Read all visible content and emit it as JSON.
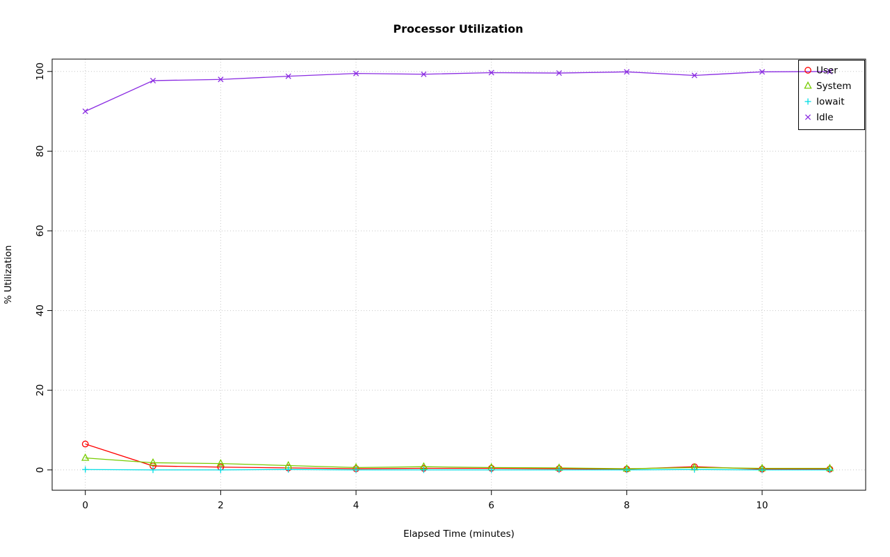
{
  "chart_data": {
    "type": "line",
    "title": "Processor Utilization",
    "xlabel": "Elapsed Time (minutes)",
    "ylabel": "% Utilization",
    "x": [
      0,
      1,
      2,
      3,
      4,
      5,
      6,
      7,
      8,
      9,
      10,
      11
    ],
    "series": [
      {
        "name": "User",
        "color": "#ff0000",
        "marker": "circle",
        "values": [
          6.5,
          1.0,
          0.7,
          0.5,
          0.3,
          0.4,
          0.4,
          0.3,
          0.2,
          0.8,
          0.2,
          0.2
        ]
      },
      {
        "name": "System",
        "color": "#77cc00",
        "marker": "triangle",
        "values": [
          3.0,
          1.8,
          1.6,
          1.1,
          0.6,
          0.8,
          0.6,
          0.5,
          0.3,
          0.6,
          0.4,
          0.4
        ]
      },
      {
        "name": "Iowait",
        "color": "#00dde4",
        "marker": "plus",
        "values": [
          0.1,
          0.0,
          0.0,
          0.1,
          0.0,
          0.0,
          0.0,
          0.0,
          0.0,
          0.1,
          0.0,
          0.0
        ]
      },
      {
        "name": "Idle",
        "color": "#8a2be2",
        "marker": "x",
        "values": [
          90.0,
          97.7,
          98.0,
          98.8,
          99.5,
          99.3,
          99.7,
          99.6,
          99.9,
          99.0,
          99.9,
          100.0
        ]
      }
    ],
    "xticks": [
      0,
      2,
      4,
      6,
      8,
      10
    ],
    "yticks": [
      0,
      20,
      40,
      60,
      80,
      100
    ],
    "xlim": [
      -0.49,
      11.53
    ],
    "ylim": [
      -5.1,
      103.1
    ],
    "grid": "dotted",
    "grid_color": "#c6c6c6",
    "frame_color": "#000000",
    "legend": {
      "position": "top-right",
      "labels": [
        "User",
        "System",
        "Iowait",
        "Idle"
      ]
    }
  }
}
